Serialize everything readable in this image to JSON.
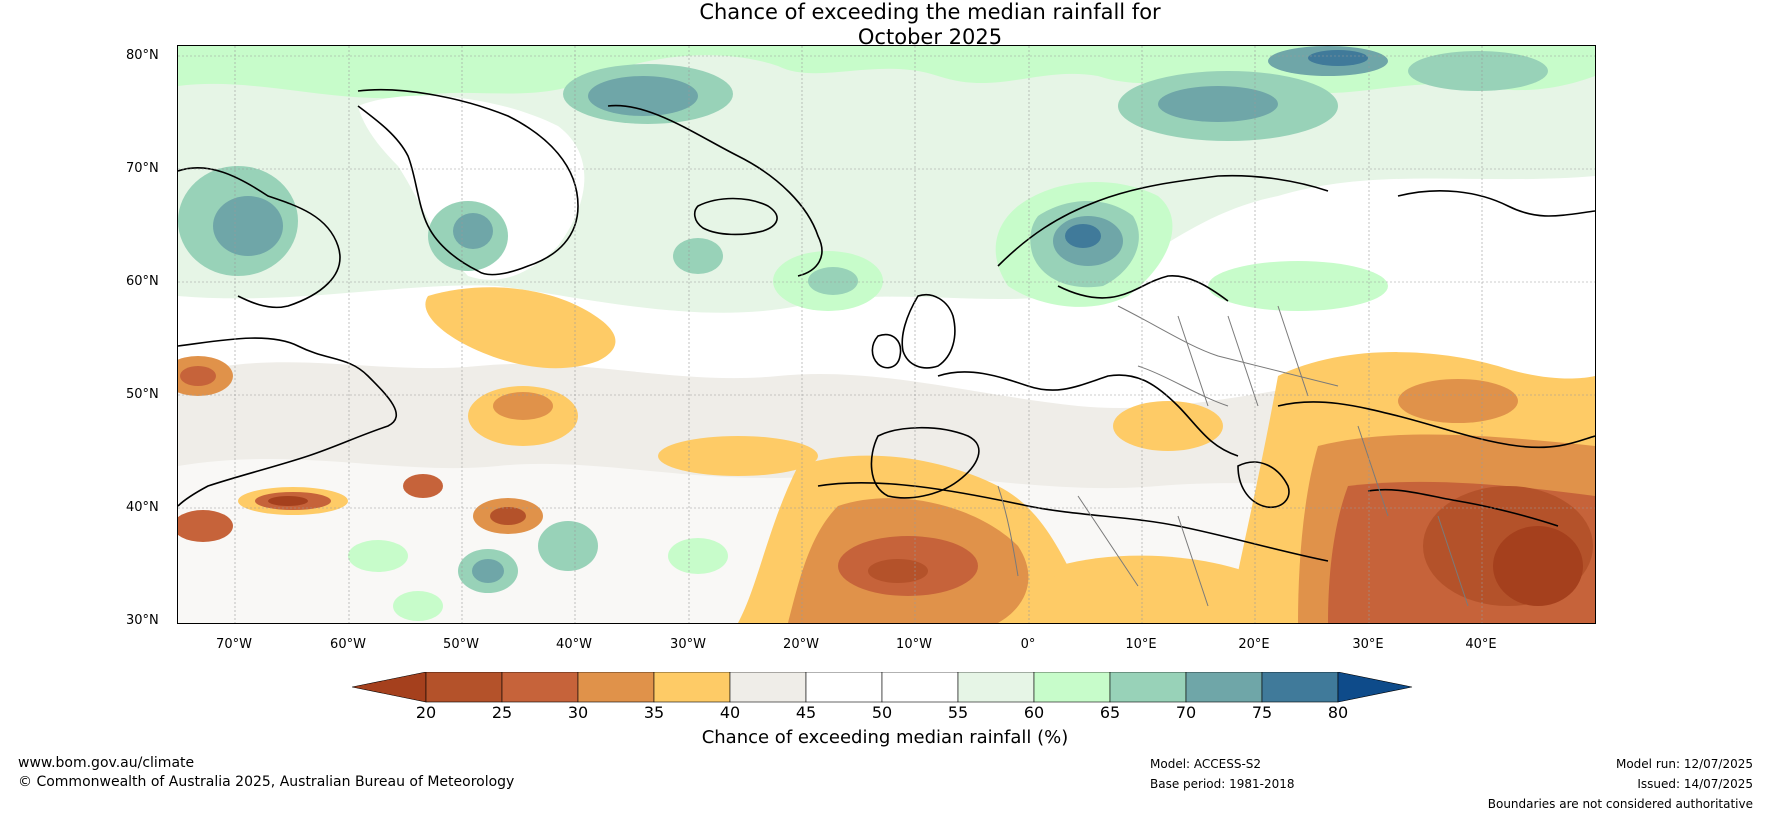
{
  "title_line1": "Chance of exceeding the median rainfall for",
  "title_line2": "October 2025",
  "lat_labels": [
    "80°N",
    "70°N",
    "60°N",
    "50°N",
    "40°N",
    "30°N"
  ],
  "lon_labels": [
    "70°W",
    "60°W",
    "50°W",
    "40°W",
    "30°W",
    "20°W",
    "10°W",
    "0°",
    "10°E",
    "20°E",
    "30°E",
    "40°E"
  ],
  "colorbar": {
    "ticks": [
      "20",
      "25",
      "30",
      "35",
      "40",
      "45",
      "50",
      "55",
      "60",
      "65",
      "70",
      "75",
      "80"
    ],
    "colors": [
      "#a5401d",
      "#b4522a",
      "#c6633a",
      "#e0924a",
      "#fecb66",
      "#efede8",
      "#ffffff",
      "#ffffff",
      "#e6f5e6",
      "#c7fcca",
      "#98d2b8",
      "#6fa6a8",
      "#407a9a",
      "#0e4b8a"
    ],
    "label": "Chance of exceeding median rainfall (%)"
  },
  "footer": {
    "website": "www.bom.gov.au/climate",
    "copyright": "© Commonwealth of Australia 2025, Australian Bureau of Meteorology",
    "model": "Model: ACCESS-S2",
    "base_period": "Base period: 1981-2018",
    "model_run": "Model run: 12/07/2025",
    "issued": "Issued: 14/07/2025",
    "disclaimer": "Boundaries are not considered authoritative"
  }
}
